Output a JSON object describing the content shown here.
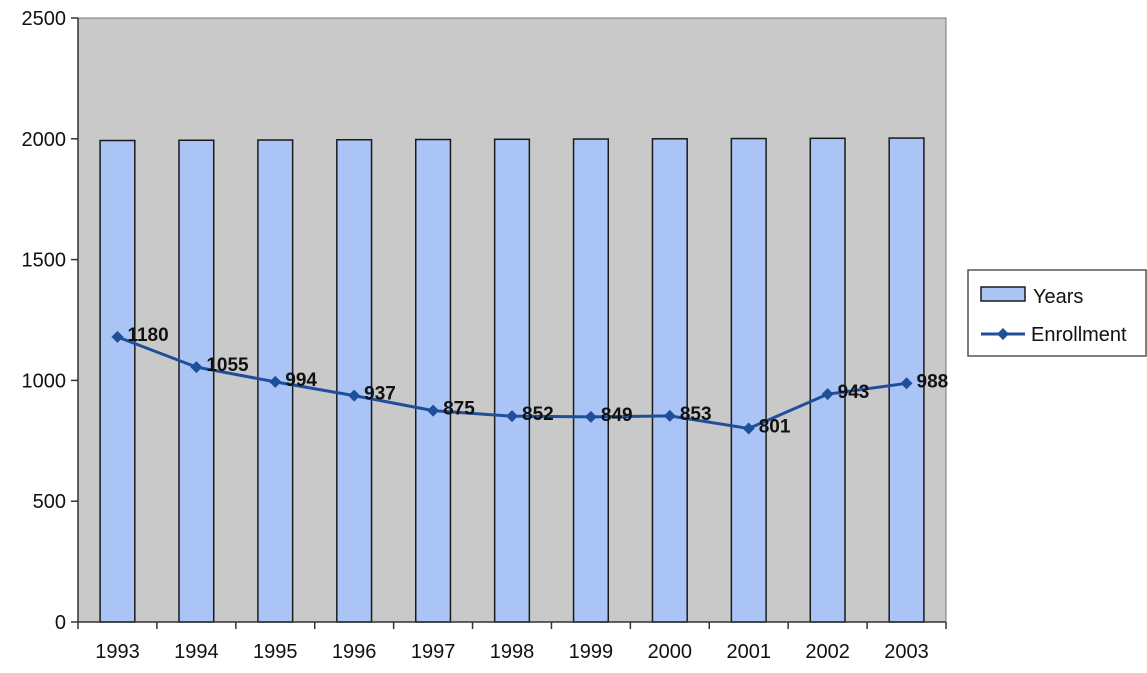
{
  "chart_data": {
    "type": "bar",
    "categories": [
      "1993",
      "1994",
      "1995",
      "1996",
      "1997",
      "1998",
      "1999",
      "2000",
      "2001",
      "2002",
      "2003"
    ],
    "series": [
      {
        "name": "Years",
        "type": "bar",
        "values": [
          1993,
          1994,
          1995,
          1996,
          1997,
          1998,
          1999,
          2000,
          2001,
          2002,
          2003
        ]
      },
      {
        "name": "Enrollment",
        "type": "line",
        "values": [
          1180,
          1055,
          994,
          937,
          875,
          852,
          849,
          853,
          801,
          943,
          988
        ]
      }
    ],
    "data_labels": [
      "1180",
      "1055",
      "994",
      "937",
      "875",
      "852",
      "849",
      "853",
      "801",
      "943",
      "988"
    ],
    "yticks": [
      "0",
      "500",
      "1000",
      "1500",
      "2000",
      "2500"
    ],
    "ylim": [
      0,
      2500
    ],
    "grid": false,
    "legend_position": "right",
    "colors": {
      "bar_fill": "#a9c4f5",
      "bar_stroke": "#1a1a1a",
      "line": "#1f4e9a",
      "plot_bg": "#c9c9c9"
    }
  }
}
